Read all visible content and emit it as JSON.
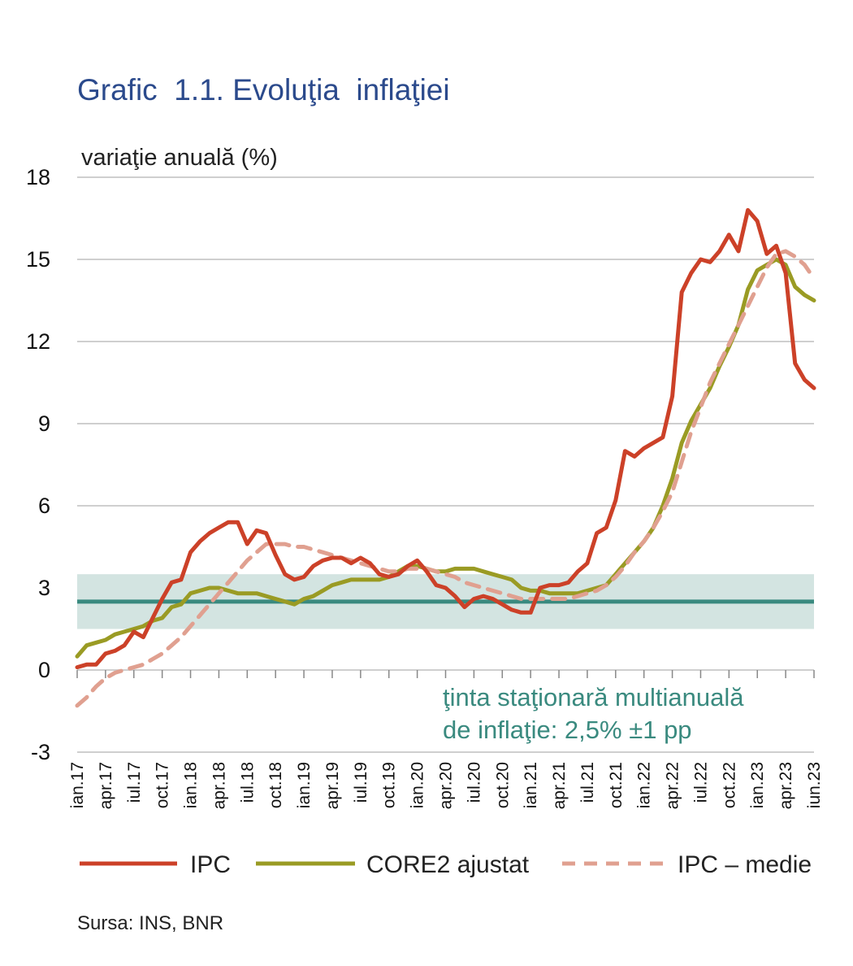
{
  "title": "Grafic  1.1. Evoluţia  inflaţiei",
  "ylabel": "variaţie anuală (%)",
  "source": "Sursa: INS, BNR",
  "chart_data": {
    "type": "line",
    "ylim": [
      -3,
      18
    ],
    "yticks": [
      18,
      15,
      12,
      9,
      6,
      3,
      0,
      -3
    ],
    "ytick_labels": [
      "18",
      "15",
      "12",
      "9",
      "6",
      "3",
      "0",
      "-3"
    ],
    "grid": true,
    "legend_position": "bottom",
    "x_tick_labels": [
      "ian.17",
      "apr.17",
      "iul.17",
      "oct.17",
      "ian.18",
      "apr.18",
      "iul.18",
      "oct.18",
      "ian.19",
      "apr.19",
      "iul.19",
      "oct.19",
      "ian.20",
      "apr.20",
      "iul.20",
      "oct.20",
      "ian.21",
      "apr.21",
      "iul.21",
      "oct.21",
      "ian.22",
      "apr.22",
      "iul.22",
      "oct.22",
      "ian.23",
      "apr.23",
      "iun.23"
    ],
    "x_start": "ian.17",
    "x_end": "iun.23",
    "target": {
      "value": 2.5,
      "band": [
        1.5,
        3.5
      ],
      "label_line1": "ţinta staţionară multianuală",
      "label_line2": "de inflaţie: 2,5% ±1 pp",
      "line_color": "#3a8a7f",
      "band_color": "#d3e4e1"
    },
    "series": [
      {
        "name": "IPC",
        "color": "#cc4128",
        "dash": false,
        "values": [
          0.1,
          0.2,
          0.2,
          0.6,
          0.7,
          0.9,
          1.4,
          1.2,
          1.9,
          2.6,
          3.2,
          3.3,
          4.3,
          4.7,
          5.0,
          5.2,
          5.4,
          5.4,
          4.6,
          5.1,
          5.0,
          4.2,
          3.5,
          3.3,
          3.4,
          3.8,
          4.0,
          4.1,
          4.1,
          3.9,
          4.1,
          3.9,
          3.5,
          3.4,
          3.5,
          3.8,
          4.0,
          3.6,
          3.1,
          3.0,
          2.7,
          2.3,
          2.6,
          2.7,
          2.6,
          2.4,
          2.2,
          2.1,
          2.1,
          3.0,
          3.1,
          3.1,
          3.2,
          3.6,
          3.9,
          5.0,
          5.2,
          6.2,
          8.0,
          7.8,
          8.1,
          8.3,
          8.5,
          10.0,
          13.8,
          14.5,
          15.0,
          14.9,
          15.3,
          15.9,
          15.3,
          16.8,
          16.4,
          15.2,
          15.5,
          14.5,
          11.2,
          10.6,
          10.3
        ]
      },
      {
        "name": "CORE2 ajustat",
        "color": "#9a9b24",
        "dash": false,
        "values": [
          0.5,
          0.9,
          1.0,
          1.1,
          1.3,
          1.4,
          1.5,
          1.6,
          1.8,
          1.9,
          2.3,
          2.4,
          2.8,
          2.9,
          3.0,
          3.0,
          2.9,
          2.8,
          2.8,
          2.8,
          2.7,
          2.6,
          2.5,
          2.4,
          2.6,
          2.7,
          2.9,
          3.1,
          3.2,
          3.3,
          3.3,
          3.3,
          3.3,
          3.4,
          3.6,
          3.8,
          3.8,
          3.7,
          3.6,
          3.6,
          3.7,
          3.7,
          3.7,
          3.6,
          3.5,
          3.4,
          3.3,
          3.0,
          2.9,
          2.9,
          2.8,
          2.8,
          2.8,
          2.8,
          2.9,
          3.0,
          3.1,
          3.5,
          3.9,
          4.3,
          4.7,
          5.2,
          6.0,
          7.0,
          8.3,
          9.1,
          9.7,
          10.3,
          11.1,
          11.8,
          12.6,
          13.9,
          14.6,
          14.8,
          15.0,
          14.8,
          14.0,
          13.7,
          13.5
        ]
      },
      {
        "name": "IPC – medie",
        "color": "#e0a090",
        "dash": true,
        "values": [
          -1.3,
          -1.0,
          -0.6,
          -0.3,
          -0.1,
          0.0,
          0.1,
          0.2,
          0.4,
          0.6,
          0.9,
          1.2,
          1.6,
          2.0,
          2.4,
          2.8,
          3.2,
          3.6,
          4.0,
          4.3,
          4.6,
          4.6,
          4.6,
          4.5,
          4.5,
          4.4,
          4.3,
          4.2,
          4.1,
          4.0,
          3.9,
          3.8,
          3.7,
          3.6,
          3.6,
          3.7,
          3.7,
          3.7,
          3.6,
          3.5,
          3.4,
          3.2,
          3.1,
          3.0,
          2.9,
          2.8,
          2.7,
          2.6,
          2.6,
          2.6,
          2.6,
          2.6,
          2.6,
          2.7,
          2.8,
          2.9,
          3.1,
          3.4,
          3.8,
          4.3,
          4.7,
          5.2,
          5.8,
          6.5,
          7.6,
          8.7,
          9.6,
          10.5,
          11.2,
          11.9,
          12.6,
          13.3,
          14.0,
          14.7,
          15.2,
          15.3,
          15.1,
          14.8,
          14.3
        ]
      }
    ]
  },
  "colors": {
    "title": "#2b4a8c",
    "grid": "#cfcfcf"
  }
}
